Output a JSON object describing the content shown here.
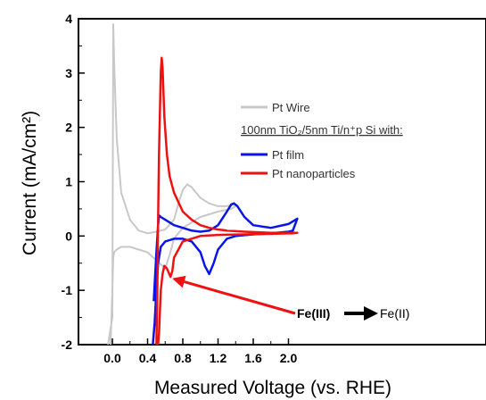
{
  "chart_data": {
    "type": "line",
    "xlabel": "Measured Voltage (vs. RHE)",
    "ylabel": "Current (mA/cm²)",
    "xlim": [
      -0.2,
      2.1
    ],
    "ylim": [
      -2,
      4
    ],
    "xticks": [
      "0.0",
      "0.4",
      "0.8",
      "1.2",
      "1.6",
      "2.0"
    ],
    "yticks": [
      "-2",
      "-1",
      "0",
      "1",
      "2",
      "3",
      "4"
    ],
    "grid": false,
    "legend_position": "top-right",
    "legend_header": "100nm TiO₂/5nm Ti/n⁺p Si with:",
    "annotation": {
      "text_a": "Fe(III)",
      "text_b": "Fe(II)",
      "arrow_target": [
        0.68,
        -0.78
      ]
    },
    "series": [
      {
        "name": "Pt Wire",
        "color": "#c8c8c8",
        "x": [
          -0.05,
          0.0,
          0.01,
          0.02,
          0.05,
          0.1,
          0.2,
          0.3,
          0.4,
          0.5,
          0.6,
          0.7,
          0.75,
          0.8,
          0.85,
          0.9,
          1.0,
          1.1,
          1.2,
          1.3,
          1.35,
          1.38,
          1.4,
          1.35,
          1.2,
          1.0,
          0.8,
          0.7,
          0.65,
          0.6,
          0.5,
          0.4,
          0.3,
          0.2,
          0.1,
          0.05,
          0.02,
          0.01,
          0.0,
          -0.02
        ],
        "y": [
          -2.0,
          -1.5,
          3.9,
          3.2,
          1.8,
          0.8,
          0.3,
          0.1,
          0.05,
          0.08,
          0.12,
          0.3,
          0.6,
          0.85,
          0.95,
          0.9,
          0.7,
          0.6,
          0.55,
          0.55,
          0.57,
          0.58,
          0.55,
          0.5,
          0.45,
          0.35,
          0.15,
          -0.05,
          -0.35,
          -0.6,
          -0.45,
          -0.3,
          -0.25,
          -0.2,
          -0.2,
          -0.25,
          -0.3,
          -0.4,
          -1.0,
          -2.0
        ]
      },
      {
        "name": "Pt film",
        "color": "#0a14e6",
        "x": [
          0.47,
          0.5,
          0.52,
          0.53,
          0.55,
          0.6,
          0.7,
          0.8,
          0.9,
          1.0,
          1.1,
          1.2,
          1.3,
          1.35,
          1.38,
          1.42,
          1.5,
          1.6,
          1.8,
          2.0,
          2.1,
          2.05,
          2.0,
          1.8,
          1.6,
          1.4,
          1.3,
          1.2,
          1.15,
          1.1,
          1.05,
          1.0,
          0.9,
          0.8,
          0.7,
          0.6,
          0.55,
          0.52,
          0.5,
          0.48,
          0.46
        ],
        "y": [
          -1.2,
          -0.3,
          0.2,
          0.38,
          0.35,
          0.3,
          0.2,
          0.15,
          0.1,
          0.08,
          0.1,
          0.2,
          0.45,
          0.58,
          0.6,
          0.55,
          0.35,
          0.2,
          0.15,
          0.22,
          0.32,
          0.1,
          0.08,
          0.05,
          0.03,
          0.0,
          -0.05,
          -0.25,
          -0.5,
          -0.7,
          -0.55,
          -0.3,
          -0.1,
          -0.05,
          -0.05,
          -0.1,
          -0.2,
          -0.5,
          -1.0,
          -1.6,
          -2.0
        ]
      },
      {
        "name": "Pt nanoparticles",
        "color": "#ee1111",
        "x": [
          0.5,
          0.51,
          0.52,
          0.53,
          0.55,
          0.56,
          0.57,
          0.59,
          0.62,
          0.65,
          0.7,
          0.8,
          0.9,
          1.0,
          1.1,
          1.2,
          1.3,
          1.5,
          1.8,
          2.1,
          2.05,
          1.8,
          1.5,
          1.2,
          1.0,
          0.8,
          0.7,
          0.68,
          0.66,
          0.62,
          0.59,
          0.57,
          0.55,
          0.54,
          0.53,
          0.52
        ],
        "y": [
          -2.0,
          -1.0,
          0.3,
          1.5,
          3.0,
          3.28,
          3.1,
          2.2,
          1.5,
          1.1,
          0.8,
          0.45,
          0.3,
          0.2,
          0.15,
          0.12,
          0.1,
          0.08,
          0.06,
          0.06,
          0.05,
          0.04,
          0.03,
          0.02,
          0.0,
          -0.1,
          -0.4,
          -0.65,
          -0.75,
          -0.6,
          -0.55,
          -0.7,
          -1.0,
          -1.4,
          -1.8,
          -2.0
        ]
      }
    ]
  }
}
